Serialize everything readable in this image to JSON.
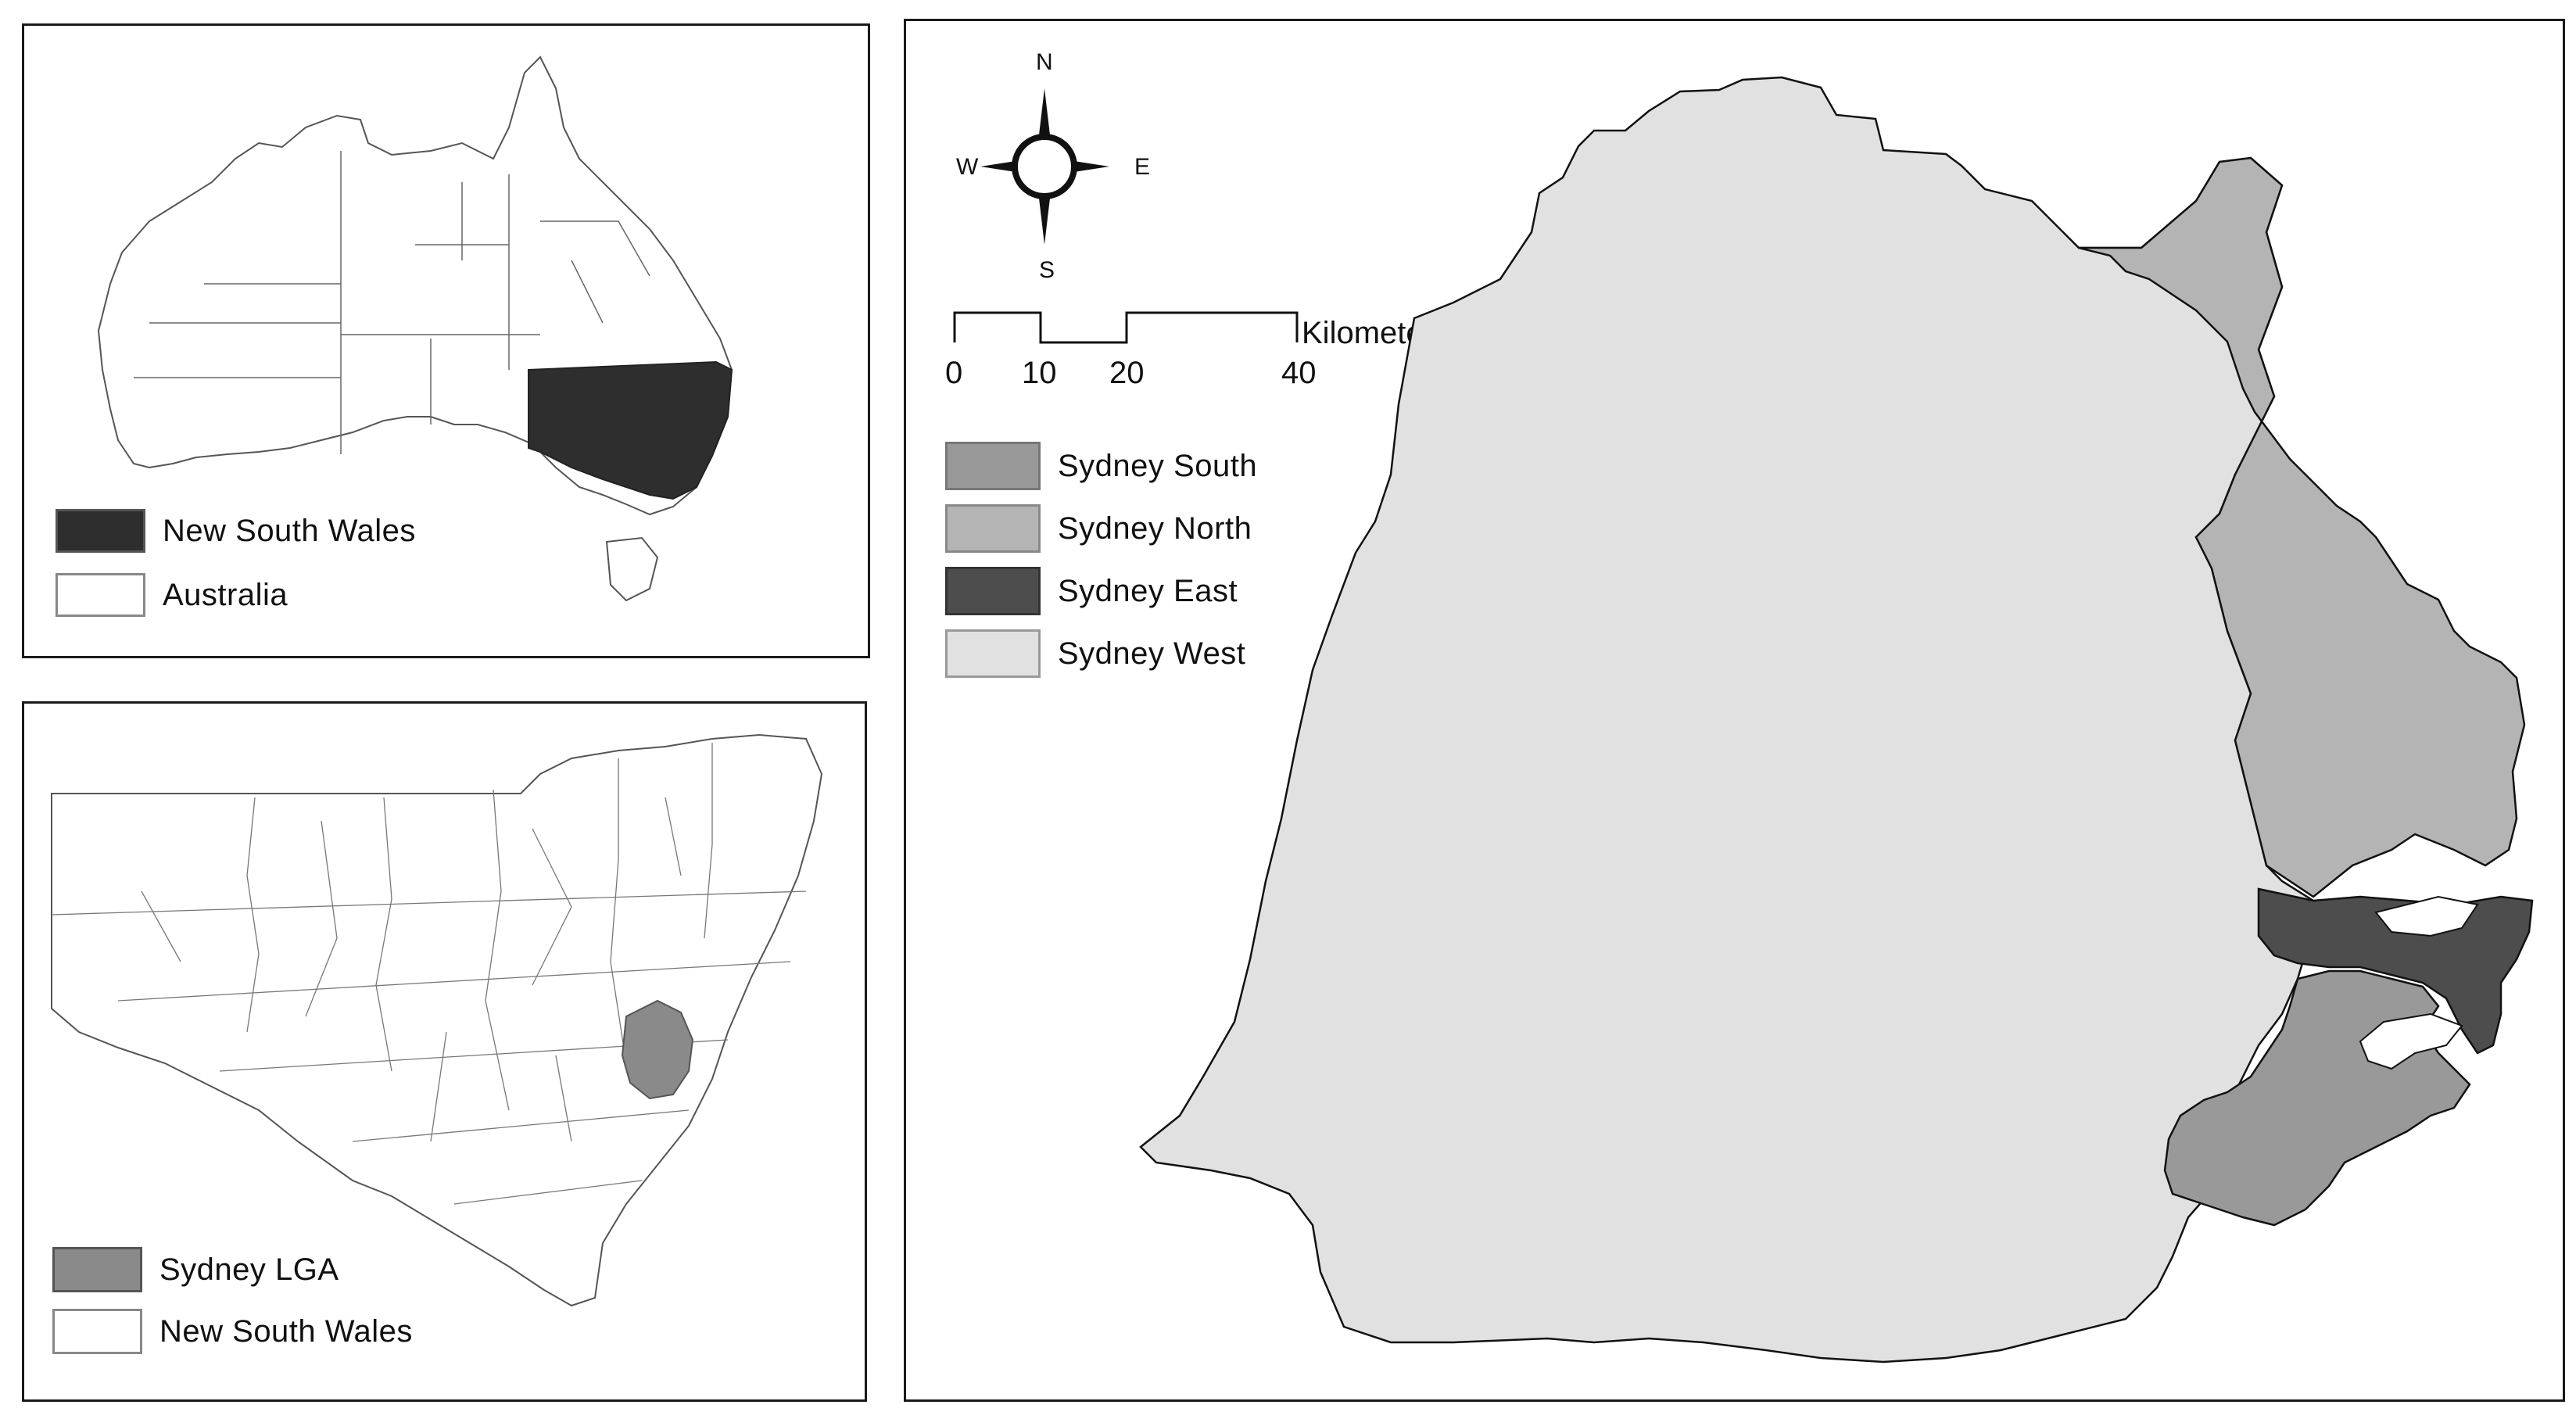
{
  "panels": {
    "australia": {
      "legend": [
        {
          "label": "New South Wales",
          "color": "#2e2e2e"
        },
        {
          "label": "Australia",
          "color": "#ffffff"
        }
      ]
    },
    "nsw": {
      "legend": [
        {
          "label": "Sydney LGA",
          "color": "#8a8a8a"
        },
        {
          "label": "New South Wales",
          "color": "#ffffff"
        }
      ]
    },
    "sydney": {
      "compass": {
        "n": "N",
        "s": "S",
        "e": "E",
        "w": "W"
      },
      "scale": {
        "unit": "Kilometers",
        "ticks": [
          "0",
          "10",
          "20",
          "40"
        ]
      },
      "legend": [
        {
          "label": "Sydney South",
          "color": "#999999"
        },
        {
          "label": "Sydney North",
          "color": "#b4b4b4"
        },
        {
          "label": "Sydney East",
          "color": "#4d4d4d"
        },
        {
          "label": "Sydney West",
          "color": "#e1e1e1"
        }
      ]
    }
  }
}
